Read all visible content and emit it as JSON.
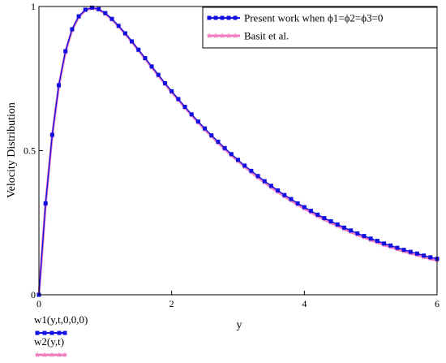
{
  "chart_data": {
    "type": "line",
    "title": "",
    "xlabel": "y",
    "ylabel": "Velocity Distribution",
    "xlim": [
      0,
      6
    ],
    "ylim": [
      0,
      1
    ],
    "x_ticks": [
      {
        "value": 0,
        "label": "0"
      },
      {
        "value": 2,
        "label": "2"
      },
      {
        "value": 4,
        "label": "4"
      },
      {
        "value": 6,
        "label": "6"
      }
    ],
    "y_ticks": [
      {
        "value": 0,
        "label": "0"
      },
      {
        "value": 0.5,
        "label": "0.5"
      },
      {
        "value": 1,
        "label": "1"
      }
    ],
    "grid": false,
    "legend_position": "top-right",
    "x": [
      0,
      0.1,
      0.2,
      0.3,
      0.4,
      0.5,
      0.6,
      0.7,
      0.8,
      0.9,
      1.0,
      1.1,
      1.2,
      1.3,
      1.4,
      1.5,
      1.6,
      1.7,
      1.8,
      1.9,
      2.0,
      2.1,
      2.2,
      2.3,
      2.4,
      2.5,
      2.6,
      2.7,
      2.8,
      2.9,
      3.0,
      3.1,
      3.2,
      3.3,
      3.4,
      3.5,
      3.6,
      3.7,
      3.8,
      3.9,
      4.0,
      4.1,
      4.2,
      4.3,
      4.4,
      4.5,
      4.6,
      4.7,
      4.8,
      4.9,
      5.0,
      5.1,
      5.2,
      5.3,
      5.4,
      5.5,
      5.6,
      5.7,
      5.8,
      5.9,
      6.0
    ],
    "series": [
      {
        "name": "Present work when ϕ1=ϕ2=ϕ3=0",
        "trace_label": "w1(y,t,0,0,0)",
        "color": "#1010e0",
        "marker": "square",
        "values": [
          0,
          0.317,
          0.555,
          0.727,
          0.845,
          0.921,
          0.966,
          0.989,
          0.996,
          0.991,
          0.977,
          0.957,
          0.933,
          0.907,
          0.879,
          0.85,
          0.821,
          0.792,
          0.763,
          0.734,
          0.706,
          0.679,
          0.652,
          0.626,
          0.601,
          0.577,
          0.553,
          0.531,
          0.509,
          0.488,
          0.468,
          0.448,
          0.43,
          0.412,
          0.394,
          0.378,
          0.362,
          0.346,
          0.332,
          0.317,
          0.304,
          0.291,
          0.278,
          0.266,
          0.255,
          0.244,
          0.233,
          0.223,
          0.213,
          0.204,
          0.195,
          0.187,
          0.178,
          0.171,
          0.163,
          0.156,
          0.149,
          0.143,
          0.136,
          0.13,
          0.125
        ]
      },
      {
        "name": "Basit et al.",
        "trace_label": "w2(y,t)",
        "color": "#f07cc0",
        "marker": "star",
        "values": [
          0,
          0.315,
          0.552,
          0.724,
          0.842,
          0.919,
          0.964,
          0.987,
          0.994,
          0.989,
          0.975,
          0.955,
          0.931,
          0.905,
          0.877,
          0.848,
          0.819,
          0.789,
          0.76,
          0.731,
          0.703,
          0.676,
          0.649,
          0.623,
          0.598,
          0.573,
          0.55,
          0.527,
          0.505,
          0.484,
          0.464,
          0.444,
          0.425,
          0.407,
          0.39,
          0.373,
          0.357,
          0.341,
          0.327,
          0.312,
          0.299,
          0.286,
          0.273,
          0.261,
          0.25,
          0.239,
          0.228,
          0.218,
          0.208,
          0.199,
          0.19,
          0.182,
          0.173,
          0.166,
          0.158,
          0.151,
          0.144,
          0.138,
          0.131,
          0.125,
          0.12
        ]
      }
    ]
  }
}
